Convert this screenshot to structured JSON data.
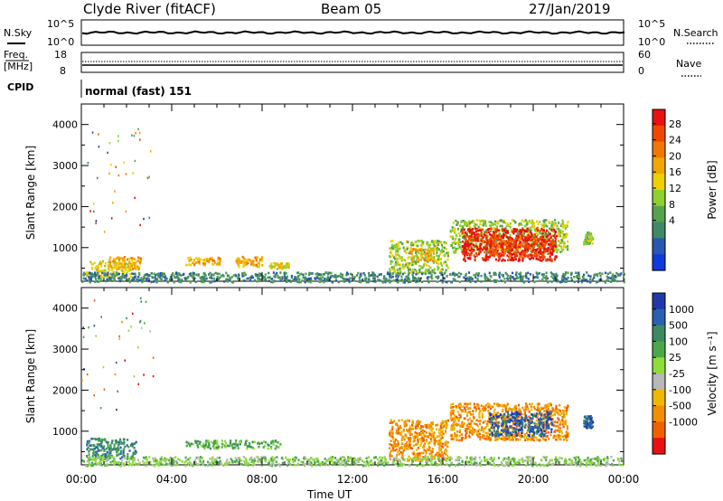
{
  "header": {
    "station": "Clyde River (fitACF)",
    "beam": "Beam 05",
    "date": "27/Jan/2019"
  },
  "top_panel": {
    "left_label": "N.Sky",
    "right_label": "N.Search",
    "left_ticks": [
      "10^5",
      "10^0"
    ],
    "right_ticks": [
      "10^5",
      "10^0"
    ]
  },
  "freq_panel": {
    "left_label_1": "Freq.",
    "left_label_2": "[MHz]",
    "left_ticks": [
      "18",
      "8"
    ],
    "right_label": "Nave",
    "right_ticks": [
      "60",
      "0"
    ]
  },
  "cpid": {
    "label": "CPID",
    "value": "normal (fast) 151"
  },
  "chart_data": [
    {
      "type": "heatmap",
      "panel": "power",
      "ylabel": "Slant Range [km]",
      "xlabel": "Time UT",
      "x_ticks": [
        "00:00",
        "04:00",
        "08:00",
        "12:00",
        "16:00",
        "20:00",
        "00:00"
      ],
      "xlim_hours": [
        0,
        24
      ],
      "ylim": [
        180,
        4500
      ],
      "y_ticks": [
        1000,
        2000,
        3000,
        4000
      ],
      "colorbar_label": "Power [dB]",
      "colorbar_ticks": [
        "4",
        "8",
        "12",
        "16",
        "20",
        "24",
        "28"
      ],
      "colorbar_colors": [
        "#0f3bdc",
        "#2a57b0",
        "#3f8a66",
        "#56a24d",
        "#8fcf2e",
        "#f0d000",
        "#f0a800",
        "#f07800",
        "#f04800",
        "#e81010"
      ],
      "regions": [
        {
          "t0": 0.2,
          "t1": 2.2,
          "r0": 300,
          "r1": 700,
          "level": 5
        },
        {
          "t0": 1.2,
          "t1": 2.6,
          "r0": 500,
          "r1": 800,
          "level": 6
        },
        {
          "t0": 4.6,
          "t1": 6.2,
          "r0": 600,
          "r1": 800,
          "level": 6
        },
        {
          "t0": 6.8,
          "t1": 8.0,
          "r0": 550,
          "r1": 800,
          "level": 6
        },
        {
          "t0": 8.3,
          "t1": 9.2,
          "r0": 500,
          "r1": 650,
          "level": 5
        },
        {
          "t0": 13.6,
          "t1": 16.2,
          "r0": 400,
          "r1": 1200,
          "level": 4
        },
        {
          "t0": 14.5,
          "t1": 15.6,
          "r0": 700,
          "r1": 1000,
          "level": 6
        },
        {
          "t0": 16.3,
          "t1": 21.5,
          "r0": 900,
          "r1": 1700,
          "level": 4
        },
        {
          "t0": 16.8,
          "t1": 21.0,
          "r0": 700,
          "r1": 1500,
          "level": 9
        },
        {
          "t0": 18.0,
          "t1": 20.5,
          "r0": 800,
          "r1": 1300,
          "level": 8
        },
        {
          "t0": 22.2,
          "t1": 22.6,
          "r0": 1100,
          "r1": 1400,
          "level": 4
        },
        {
          "t0": 0.0,
          "t1": 24.0,
          "r0": 180,
          "r1": 420,
          "level": 2
        }
      ]
    },
    {
      "type": "heatmap",
      "panel": "velocity",
      "ylabel": "Slant Range [km]",
      "xlabel": "Time UT",
      "x_ticks": [
        "00:00",
        "04:00",
        "08:00",
        "12:00",
        "16:00",
        "20:00",
        "00:00"
      ],
      "xlim_hours": [
        0,
        24
      ],
      "ylim": [
        180,
        4500
      ],
      "y_ticks": [
        1000,
        2000,
        3000,
        4000
      ],
      "colorbar_label": "Velocity [m s⁻¹]",
      "colorbar_ticks": [
        "1000",
        "500",
        "100",
        "25",
        "-25",
        "-100",
        "-500",
        "-1000"
      ],
      "colorbar_colors": [
        "#1f3aa8",
        "#2a60b0",
        "#3b8a64",
        "#4aa84a",
        "#8fdc3a",
        "#b8b8b8",
        "#f0b800",
        "#f09000",
        "#f06000",
        "#e81010"
      ],
      "regions": [
        {
          "t0": 0.2,
          "t1": 2.4,
          "r0": 350,
          "r1": 850,
          "level": 2
        },
        {
          "t0": 4.6,
          "t1": 8.8,
          "r0": 600,
          "r1": 800,
          "level": 3
        },
        {
          "t0": 13.6,
          "t1": 16.2,
          "r0": 300,
          "r1": 1300,
          "level": 7
        },
        {
          "t0": 16.3,
          "t1": 21.5,
          "r0": 800,
          "r1": 1700,
          "level": 7
        },
        {
          "t0": 18.0,
          "t1": 20.8,
          "r0": 900,
          "r1": 1500,
          "level": 1
        },
        {
          "t0": 22.2,
          "t1": 22.6,
          "r0": 1100,
          "r1": 1400,
          "level": 1
        },
        {
          "t0": 0.0,
          "t1": 24.0,
          "r0": 180,
          "r1": 400,
          "level": 4
        }
      ]
    }
  ]
}
